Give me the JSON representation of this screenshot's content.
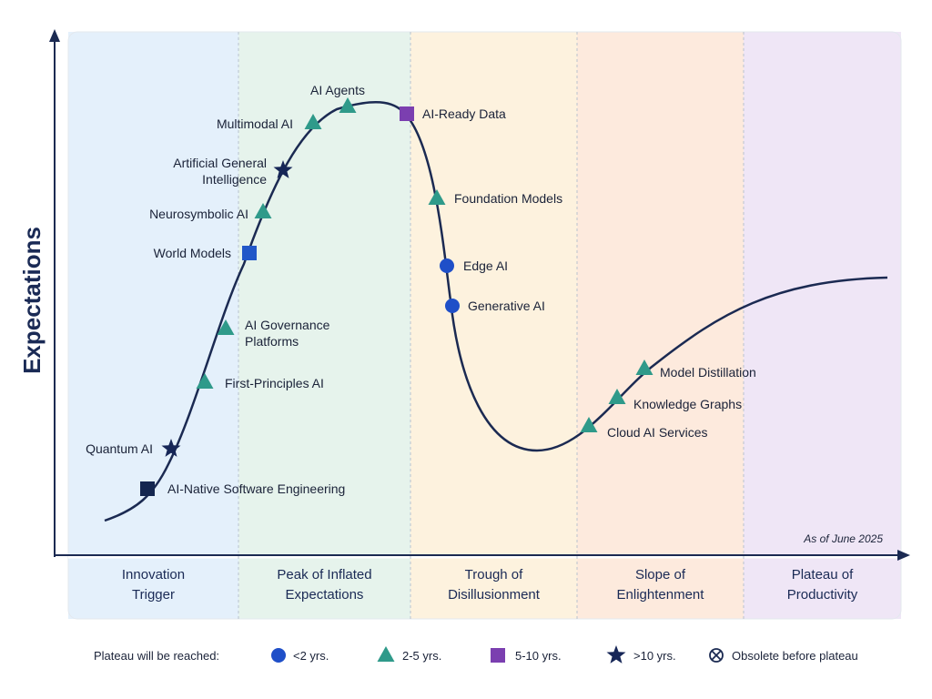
{
  "axis": {
    "ylabel": "Expectations"
  },
  "note": "As of June 2025",
  "phases": [
    {
      "lines": [
        "Innovation",
        "Trigger"
      ],
      "color": "#e4f0fb"
    },
    {
      "lines": [
        "Peak of Inflated",
        "Expectations"
      ],
      "color": "#e6f3ec"
    },
    {
      "lines": [
        "Trough of",
        "Disillusionment"
      ],
      "color": "#fdf2de"
    },
    {
      "lines": [
        "Slope of",
        "Enlightenment"
      ],
      "color": "#fdeadd"
    },
    {
      "lines": [
        "Plateau of",
        "Productivity"
      ],
      "color": "#efe6f6"
    }
  ],
  "technologies": [
    {
      "name": "AI-Native Software Engineering",
      "marker": "square-dark"
    },
    {
      "name": "Quantum AI",
      "marker": "star"
    },
    {
      "name": "First-Principles AI",
      "marker": "triangle"
    },
    {
      "name": "AI Governance Platforms",
      "marker": "triangle"
    },
    {
      "name": "World Models",
      "marker": "square-blue"
    },
    {
      "name": "Neurosymbolic AI",
      "marker": "triangle"
    },
    {
      "name": "Artificial General Intelligence",
      "marker": "star"
    },
    {
      "name": "Multimodal AI",
      "marker": "triangle"
    },
    {
      "name": "AI Agents",
      "marker": "triangle"
    },
    {
      "name": "AI-Ready Data",
      "marker": "square-purple"
    },
    {
      "name": "Foundation Models",
      "marker": "triangle"
    },
    {
      "name": "Edge AI",
      "marker": "circle"
    },
    {
      "name": "Generative AI",
      "marker": "circle"
    },
    {
      "name": "Cloud AI Services",
      "marker": "triangle"
    },
    {
      "name": "Knowledge Graphs",
      "marker": "triangle"
    },
    {
      "name": "Model Distillation",
      "marker": "triangle"
    }
  ],
  "legend": {
    "title": "Plateau will be reached:",
    "items": [
      {
        "marker": "circle",
        "label": "<2 yrs."
      },
      {
        "marker": "triangle",
        "label": "2-5 yrs."
      },
      {
        "marker": "square-purple",
        "label": "5-10 yrs."
      },
      {
        "marker": "star",
        "label": ">10 yrs."
      },
      {
        "marker": "obsolete",
        "label": "Obsolete before plateau"
      }
    ]
  },
  "colors": {
    "curve": "#1b2a52",
    "axis": "#1b2a52",
    "circle": "#1f4fc8",
    "triangle": "#2f9a8a",
    "square_blue": "#2257c8",
    "square_dark": "#14264f",
    "square_purple": "#7b3fb0",
    "star": "#162657"
  }
}
